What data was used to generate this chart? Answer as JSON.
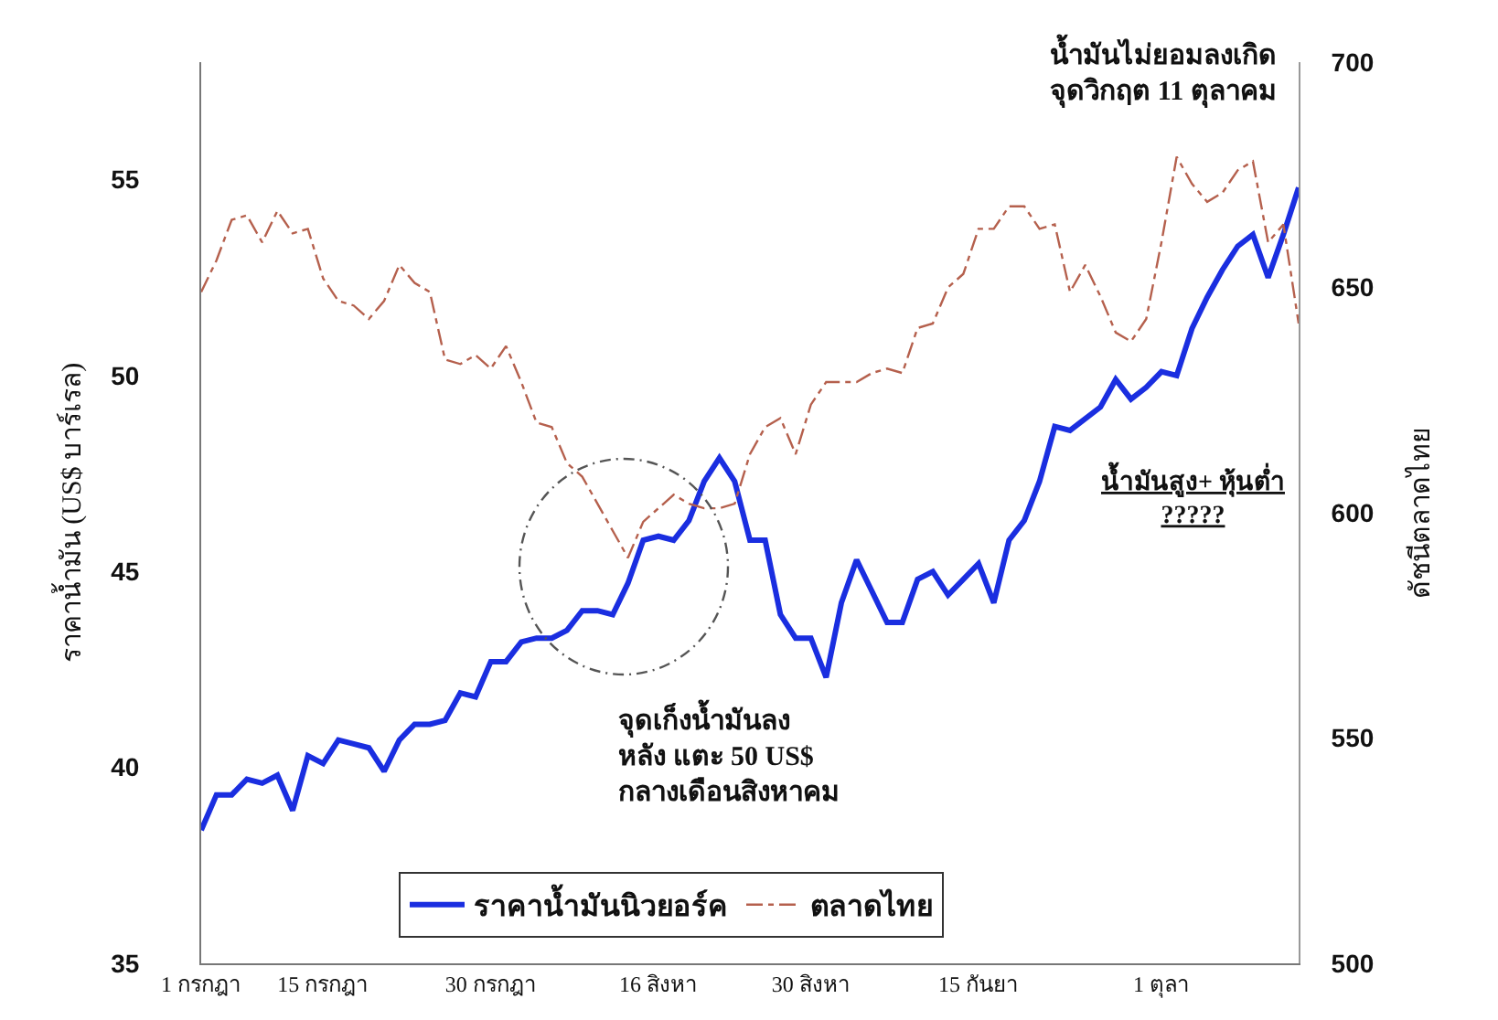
{
  "chart_data": {
    "type": "line",
    "ylabel": "ราคาน้ำมัน (US$ บาร์เรล)",
    "y2label": "ดัชนีตลาดไทย",
    "categories": [
      "1 กรกฎา",
      null,
      null,
      null,
      null,
      null,
      null,
      null,
      "15 กรกฎา",
      null,
      null,
      null,
      null,
      null,
      null,
      null,
      null,
      null,
      null,
      "30 กรกฎา",
      null,
      null,
      null,
      null,
      null,
      null,
      null,
      null,
      null,
      null,
      "16 สิงหา",
      null,
      null,
      null,
      null,
      null,
      null,
      null,
      null,
      null,
      "30 สิงหา",
      null,
      null,
      null,
      null,
      null,
      null,
      null,
      null,
      null,
      null,
      "15 กันยา",
      null,
      null,
      null,
      null,
      null,
      null,
      null,
      null,
      null,
      null,
      null,
      "1 ตุลา",
      null,
      null,
      null,
      null,
      null,
      null,
      null,
      null,
      null
    ],
    "ylim": [
      35,
      58
    ],
    "yticks": [
      35,
      40,
      45,
      50,
      55
    ],
    "y2lim": [
      500,
      700
    ],
    "y2ticks": [
      500,
      550,
      600,
      650,
      700
    ],
    "grid": false,
    "legend": "bottom",
    "marker": "none",
    "series": [
      {
        "name": "ราคาน้ำมันนิวยอร์ค",
        "color": "#1a2ee0",
        "line_style": "solid",
        "values": [
          38.4,
          39.3,
          39.3,
          39.7,
          39.6,
          39.8,
          38.9,
          40.3,
          40.1,
          40.7,
          40.6,
          40.5,
          39.9,
          40.7,
          41.1,
          41.1,
          41.2,
          41.9,
          41.8,
          42.7,
          42.7,
          43.2,
          43.3,
          43.3,
          43.5,
          44.0,
          44.0,
          43.9,
          44.7,
          45.8,
          45.9,
          45.8,
          46.3,
          47.3,
          47.9,
          47.3,
          45.8,
          45.8,
          43.9,
          43.3,
          43.3,
          42.3,
          44.2,
          45.3,
          44.5,
          43.7,
          43.7,
          44.8,
          45.0,
          44.4,
          44.8,
          45.2,
          44.2,
          45.8,
          46.3,
          47.3,
          48.7,
          48.6,
          48.9,
          49.2,
          49.9,
          49.4,
          49.7,
          50.1,
          50.0,
          51.2,
          52.0,
          52.7,
          53.3,
          53.6,
          52.5,
          53.6,
          54.8
        ]
      },
      {
        "name": "ตลาดไทย",
        "color": "#b5604d",
        "line_style": "dashed",
        "axis": "y2",
        "values": [
          649,
          656,
          665,
          666,
          660,
          667,
          662,
          663,
          652,
          647,
          646,
          643,
          647,
          655,
          651,
          649,
          634,
          633,
          635,
          632,
          637,
          629,
          620,
          619,
          611,
          608,
          602,
          596,
          590,
          598,
          601,
          604,
          602,
          601,
          601,
          602,
          613,
          619,
          621,
          613,
          624,
          629,
          629,
          629,
          631,
          632,
          631,
          641,
          642,
          650,
          653,
          663,
          663,
          668,
          668,
          663,
          664,
          649,
          655,
          648,
          640,
          638,
          643,
          660,
          679,
          673,
          669,
          671,
          676,
          678,
          660,
          664,
          642
        ]
      }
    ],
    "annotations": [
      "น้ำมันไม่ยอมลงเกิด\nจุดวิกฤต 11 ตุลาคม",
      "น้ำมันสูง+ หุ้นต่ำ\n?????",
      "จุดเก็งน้ำมันลง\nหลัง แตะ 50 US$\nกลางเดือนสิงหาคม"
    ]
  }
}
